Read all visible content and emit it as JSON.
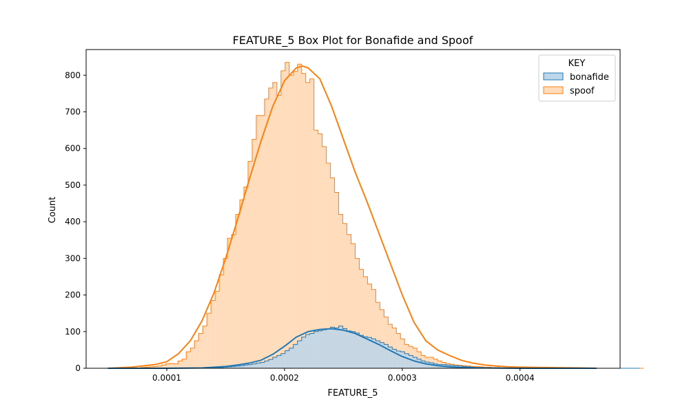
{
  "chart_data": {
    "type": "histogram",
    "title": "FEATURE_5 Box Plot for Bonafide and Spoof",
    "xlabel": "FEATURE_5",
    "ylabel": "Count",
    "xlim": [
      3.15e-05,
      0.000485
    ],
    "ylim": [
      0,
      870
    ],
    "x_ticks": [
      0.0001,
      0.0002,
      0.0003,
      0.0004
    ],
    "x_tick_labels": [
      "0.0001",
      "0.0002",
      "0.0003",
      "0.0004"
    ],
    "y_ticks": [
      0,
      100,
      200,
      300,
      400,
      500,
      600,
      700,
      800
    ],
    "y_tick_labels": [
      "0",
      "100",
      "200",
      "300",
      "400",
      "500",
      "600",
      "700",
      "800"
    ],
    "bin_start": 5e-05,
    "bin_width": 3.5e-06,
    "legend": {
      "title": "KEY",
      "position": "top-right",
      "entries": [
        "bonafide",
        "spoof"
      ]
    },
    "series": [
      {
        "name": "spoof",
        "color": "#ff7f0e",
        "fill": "#ffdcbc",
        "counts": [
          0,
          0,
          0,
          0,
          0,
          0,
          0,
          1,
          2,
          3,
          4,
          5,
          6,
          9,
          12,
          13,
          12,
          20,
          25,
          45,
          55,
          75,
          95,
          115,
          150,
          185,
          210,
          255,
          300,
          355,
          365,
          420,
          460,
          495,
          565,
          625,
          690,
          690,
          735,
          765,
          780,
          745,
          812,
          835,
          800,
          810,
          830,
          805,
          780,
          790,
          650,
          640,
          605,
          560,
          520,
          480,
          420,
          395,
          365,
          340,
          300,
          270,
          250,
          230,
          215,
          180,
          160,
          140,
          120,
          110,
          95,
          80,
          65,
          60,
          55,
          45,
          35,
          30,
          30,
          25,
          20,
          16,
          13,
          11,
          9,
          8,
          7,
          6,
          5,
          5,
          4,
          3,
          3,
          2,
          2,
          1,
          1,
          1,
          1,
          1,
          1,
          1,
          0,
          0,
          0,
          0,
          0,
          0,
          0,
          0,
          0,
          0,
          0,
          0,
          0,
          0,
          0,
          0,
          0,
          0,
          0,
          0,
          0,
          0,
          0,
          0,
          0,
          0,
          0,
          0
        ],
        "kde": [
          [
            5e-05,
            0
          ],
          [
            7e-05,
            3
          ],
          [
            9e-05,
            10
          ],
          [
            0.0001,
            18
          ],
          [
            0.00011,
            40
          ],
          [
            0.00012,
            75
          ],
          [
            0.00013,
            130
          ],
          [
            0.00014,
            205
          ],
          [
            0.00015,
            300
          ],
          [
            0.00016,
            405
          ],
          [
            0.00017,
            515
          ],
          [
            0.00018,
            620
          ],
          [
            0.00019,
            715
          ],
          [
            0.0002,
            785
          ],
          [
            0.00021,
            820
          ],
          [
            0.000215,
            825
          ],
          [
            0.00022,
            820
          ],
          [
            0.00023,
            790
          ],
          [
            0.00024,
            715
          ],
          [
            0.00025,
            625
          ],
          [
            0.00026,
            535
          ],
          [
            0.00027,
            455
          ],
          [
            0.00028,
            370
          ],
          [
            0.00029,
            285
          ],
          [
            0.0003,
            200
          ],
          [
            0.00031,
            125
          ],
          [
            0.00032,
            75
          ],
          [
            0.00033,
            50
          ],
          [
            0.00034,
            35
          ],
          [
            0.00035,
            22
          ],
          [
            0.00036,
            14
          ],
          [
            0.00037,
            9
          ],
          [
            0.00038,
            6
          ],
          [
            0.00039,
            4
          ],
          [
            0.0004,
            3
          ],
          [
            0.00042,
            2
          ],
          [
            0.00045,
            1
          ],
          [
            0.000465,
            0
          ]
        ]
      },
      {
        "name": "bonafide",
        "color": "#1f77b4",
        "fill": "#bcd6ea",
        "counts": [
          0,
          0,
          0,
          0,
          0,
          0,
          0,
          0,
          0,
          0,
          0,
          0,
          0,
          0,
          0,
          0,
          0,
          0,
          0,
          0,
          0,
          0,
          0,
          0,
          1,
          1,
          2,
          2,
          3,
          4,
          5,
          6,
          7,
          9,
          10,
          12,
          14,
          16,
          20,
          24,
          30,
          35,
          40,
          48,
          55,
          65,
          75,
          85,
          92,
          95,
          100,
          102,
          105,
          108,
          112,
          110,
          115,
          108,
          102,
          100,
          96,
          90,
          86,
          84,
          80,
          75,
          70,
          65,
          58,
          52,
          47,
          45,
          40,
          35,
          30,
          25,
          20,
          17,
          15,
          12,
          10,
          10,
          9,
          8,
          7,
          6,
          5,
          4,
          3,
          2,
          2,
          1,
          1,
          1,
          1,
          0,
          0,
          0,
          0,
          0,
          0,
          0,
          0,
          0,
          0,
          0,
          0,
          0,
          0,
          0,
          0,
          0,
          0,
          0,
          0,
          0,
          0,
          0,
          0,
          0,
          0,
          0,
          0,
          0,
          0,
          0,
          0,
          0,
          0
        ],
        "kde": [
          [
            5e-05,
            0
          ],
          [
            0.0001,
            0
          ],
          [
            0.00013,
            1
          ],
          [
            0.00015,
            5
          ],
          [
            0.00016,
            9
          ],
          [
            0.00017,
            14
          ],
          [
            0.00018,
            22
          ],
          [
            0.00019,
            38
          ],
          [
            0.0002,
            60
          ],
          [
            0.00021,
            85
          ],
          [
            0.00022,
            100
          ],
          [
            0.00023,
            106
          ],
          [
            0.00024,
            108
          ],
          [
            0.00025,
            104
          ],
          [
            0.00026,
            95
          ],
          [
            0.00027,
            80
          ],
          [
            0.00028,
            65
          ],
          [
            0.00029,
            48
          ],
          [
            0.0003,
            32
          ],
          [
            0.00031,
            20
          ],
          [
            0.00032,
            12
          ],
          [
            0.00033,
            7
          ],
          [
            0.00034,
            4
          ],
          [
            0.00035,
            2
          ],
          [
            0.00037,
            1
          ],
          [
            0.0004,
            0
          ],
          [
            0.000465,
            0
          ]
        ]
      }
    ]
  }
}
